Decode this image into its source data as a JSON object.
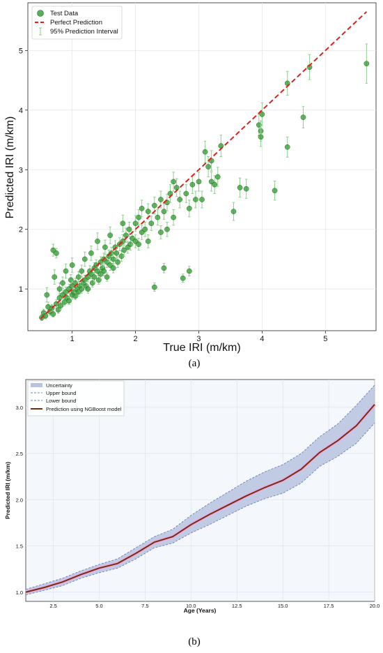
{
  "figure": {
    "caption_a": "(a)",
    "caption_b": "(b)"
  },
  "chart_data": [
    {
      "type": "scatter",
      "panel": "a",
      "xlabel": "True IRI (m/km)",
      "ylabel": "Predicted IRI (m/km)",
      "xlim": [
        0.3,
        5.8
      ],
      "ylim": [
        0.3,
        5.8
      ],
      "xticks": [
        1,
        2,
        3,
        4,
        5
      ],
      "yticks": [
        1,
        2,
        3,
        4,
        5
      ],
      "grid": true,
      "legend_position": "top-left",
      "legend": [
        "Test Data",
        "Perfect Prediction",
        "95% Prediction Interval"
      ],
      "colors": {
        "points": "#2e9b2e",
        "points_edge": "#1f6e1f",
        "interval": "#8fcf8f",
        "perfect_line": "#e0201b"
      },
      "perfect_prediction": {
        "x": [
          0.5,
          5.65
        ],
        "y": [
          0.5,
          5.65
        ]
      },
      "points": [
        {
          "x": 0.52,
          "y": 0.52,
          "e": 0.05
        },
        {
          "x": 0.55,
          "y": 0.6,
          "e": 0.06
        },
        {
          "x": 0.58,
          "y": 0.55,
          "e": 0.05
        },
        {
          "x": 0.6,
          "y": 0.9,
          "e": 0.12
        },
        {
          "x": 0.62,
          "y": 0.7,
          "e": 0.08
        },
        {
          "x": 0.65,
          "y": 0.62,
          "e": 0.06
        },
        {
          "x": 0.68,
          "y": 0.68,
          "e": 0.06
        },
        {
          "x": 0.7,
          "y": 1.65,
          "e": 0.1
        },
        {
          "x": 0.7,
          "y": 0.58,
          "e": 0.05
        },
        {
          "x": 0.72,
          "y": 1.2,
          "e": 0.12
        },
        {
          "x": 0.75,
          "y": 0.75,
          "e": 0.07
        },
        {
          "x": 0.75,
          "y": 1.6,
          "e": 0.08
        },
        {
          "x": 0.78,
          "y": 0.65,
          "e": 0.06
        },
        {
          "x": 0.8,
          "y": 0.85,
          "e": 0.08
        },
        {
          "x": 0.8,
          "y": 1.0,
          "e": 0.1
        },
        {
          "x": 0.82,
          "y": 0.72,
          "e": 0.06
        },
        {
          "x": 0.85,
          "y": 0.9,
          "e": 0.07
        },
        {
          "x": 0.85,
          "y": 1.1,
          "e": 0.1
        },
        {
          "x": 0.88,
          "y": 0.78,
          "e": 0.06
        },
        {
          "x": 0.9,
          "y": 0.95,
          "e": 0.08
        },
        {
          "x": 0.9,
          "y": 1.3,
          "e": 0.12
        },
        {
          "x": 0.92,
          "y": 0.85,
          "e": 0.07
        },
        {
          "x": 0.95,
          "y": 1.0,
          "e": 0.08
        },
        {
          "x": 0.95,
          "y": 0.8,
          "e": 0.06
        },
        {
          "x": 0.98,
          "y": 1.15,
          "e": 0.09
        },
        {
          "x": 1.0,
          "y": 0.9,
          "e": 0.07
        },
        {
          "x": 1.0,
          "y": 1.05,
          "e": 0.08
        },
        {
          "x": 1.0,
          "y": 1.4,
          "e": 0.12
        },
        {
          "x": 1.02,
          "y": 0.95,
          "e": 0.07
        },
        {
          "x": 1.05,
          "y": 1.1,
          "e": 0.08
        },
        {
          "x": 1.05,
          "y": 0.88,
          "e": 0.06
        },
        {
          "x": 1.08,
          "y": 1.0,
          "e": 0.07
        },
        {
          "x": 1.1,
          "y": 1.2,
          "e": 0.09
        },
        {
          "x": 1.1,
          "y": 0.95,
          "e": 0.07
        },
        {
          "x": 1.12,
          "y": 1.05,
          "e": 0.08
        },
        {
          "x": 1.15,
          "y": 1.3,
          "e": 0.1
        },
        {
          "x": 1.15,
          "y": 1.0,
          "e": 0.07
        },
        {
          "x": 1.18,
          "y": 1.1,
          "e": 0.08
        },
        {
          "x": 1.2,
          "y": 1.15,
          "e": 0.08
        },
        {
          "x": 1.2,
          "y": 1.5,
          "e": 0.12
        },
        {
          "x": 1.22,
          "y": 1.05,
          "e": 0.07
        },
        {
          "x": 1.25,
          "y": 1.2,
          "e": 0.08
        },
        {
          "x": 1.25,
          "y": 1.0,
          "e": 0.07
        },
        {
          "x": 1.28,
          "y": 1.3,
          "e": 0.09
        },
        {
          "x": 1.3,
          "y": 1.25,
          "e": 0.08
        },
        {
          "x": 1.3,
          "y": 1.6,
          "e": 0.12
        },
        {
          "x": 1.32,
          "y": 1.1,
          "e": 0.07
        },
        {
          "x": 1.35,
          "y": 1.35,
          "e": 0.09
        },
        {
          "x": 1.35,
          "y": 1.2,
          "e": 0.08
        },
        {
          "x": 1.38,
          "y": 1.4,
          "e": 0.09
        },
        {
          "x": 1.4,
          "y": 1.3,
          "e": 0.08
        },
        {
          "x": 1.4,
          "y": 1.8,
          "e": 0.14
        },
        {
          "x": 1.42,
          "y": 1.15,
          "e": 0.07
        },
        {
          "x": 1.45,
          "y": 1.45,
          "e": 0.09
        },
        {
          "x": 1.45,
          "y": 1.25,
          "e": 0.08
        },
        {
          "x": 1.48,
          "y": 1.35,
          "e": 0.08
        },
        {
          "x": 1.5,
          "y": 1.5,
          "e": 0.1
        },
        {
          "x": 1.5,
          "y": 1.3,
          "e": 0.08
        },
        {
          "x": 1.52,
          "y": 1.7,
          "e": 0.12
        },
        {
          "x": 1.55,
          "y": 1.45,
          "e": 0.09
        },
        {
          "x": 1.55,
          "y": 1.2,
          "e": 0.07
        },
        {
          "x": 1.58,
          "y": 1.55,
          "e": 0.1
        },
        {
          "x": 1.6,
          "y": 1.4,
          "e": 0.09
        },
        {
          "x": 1.6,
          "y": 1.9,
          "e": 0.14
        },
        {
          "x": 1.62,
          "y": 1.6,
          "e": 0.1
        },
        {
          "x": 1.65,
          "y": 1.5,
          "e": 0.09
        },
        {
          "x": 1.65,
          "y": 1.35,
          "e": 0.08
        },
        {
          "x": 1.68,
          "y": 1.7,
          "e": 0.11
        },
        {
          "x": 1.7,
          "y": 1.6,
          "e": 0.1
        },
        {
          "x": 1.72,
          "y": 1.45,
          "e": 0.09
        },
        {
          "x": 1.75,
          "y": 1.75,
          "e": 0.11
        },
        {
          "x": 1.78,
          "y": 1.55,
          "e": 0.09
        },
        {
          "x": 1.8,
          "y": 1.8,
          "e": 0.11
        },
        {
          "x": 1.8,
          "y": 2.1,
          "e": 0.14
        },
        {
          "x": 1.82,
          "y": 1.65,
          "e": 0.1
        },
        {
          "x": 1.85,
          "y": 1.9,
          "e": 0.12
        },
        {
          "x": 1.88,
          "y": 1.7,
          "e": 0.1
        },
        {
          "x": 1.9,
          "y": 2.0,
          "e": 0.12
        },
        {
          "x": 1.92,
          "y": 1.75,
          "e": 0.1
        },
        {
          "x": 1.95,
          "y": 1.85,
          "e": 0.11
        },
        {
          "x": 2.0,
          "y": 2.1,
          "e": 0.13
        },
        {
          "x": 2.0,
          "y": 1.8,
          "e": 0.11
        },
        {
          "x": 2.05,
          "y": 2.2,
          "e": 0.13
        },
        {
          "x": 2.05,
          "y": 1.75,
          "e": 0.1
        },
        {
          "x": 2.1,
          "y": 1.95,
          "e": 0.12
        },
        {
          "x": 2.1,
          "y": 2.35,
          "e": 0.14
        },
        {
          "x": 2.15,
          "y": 2.0,
          "e": 0.12
        },
        {
          "x": 2.2,
          "y": 2.3,
          "e": 0.13
        },
        {
          "x": 2.2,
          "y": 1.8,
          "e": 0.11
        },
        {
          "x": 2.25,
          "y": 2.1,
          "e": 0.12
        },
        {
          "x": 2.3,
          "y": 2.4,
          "e": 0.14
        },
        {
          "x": 2.3,
          "y": 1.03,
          "e": 0.07
        },
        {
          "x": 2.35,
          "y": 2.2,
          "e": 0.13
        },
        {
          "x": 2.4,
          "y": 2.5,
          "e": 0.14
        },
        {
          "x": 2.4,
          "y": 1.95,
          "e": 0.11
        },
        {
          "x": 2.45,
          "y": 2.3,
          "e": 0.13
        },
        {
          "x": 2.45,
          "y": 1.35,
          "e": 0.08
        },
        {
          "x": 2.5,
          "y": 2.45,
          "e": 0.14
        },
        {
          "x": 2.5,
          "y": 2.0,
          "e": 0.12
        },
        {
          "x": 2.55,
          "y": 2.6,
          "e": 0.15
        },
        {
          "x": 2.6,
          "y": 2.8,
          "e": 0.16
        },
        {
          "x": 2.6,
          "y": 2.2,
          "e": 0.13
        },
        {
          "x": 2.65,
          "y": 2.7,
          "e": 0.15
        },
        {
          "x": 2.7,
          "y": 2.5,
          "e": 0.14
        },
        {
          "x": 2.75,
          "y": 1.18,
          "e": 0.07
        },
        {
          "x": 2.8,
          "y": 2.6,
          "e": 0.15
        },
        {
          "x": 2.85,
          "y": 1.3,
          "e": 0.08
        },
        {
          "x": 2.85,
          "y": 2.35,
          "e": 0.14
        },
        {
          "x": 2.9,
          "y": 2.75,
          "e": 0.15
        },
        {
          "x": 2.95,
          "y": 2.5,
          "e": 0.14
        },
        {
          "x": 3.0,
          "y": 2.8,
          "e": 0.16
        },
        {
          "x": 3.05,
          "y": 2.5,
          "e": 0.14
        },
        {
          "x": 3.1,
          "y": 3.3,
          "e": 0.18
        },
        {
          "x": 3.15,
          "y": 3.05,
          "e": 0.17
        },
        {
          "x": 3.2,
          "y": 3.15,
          "e": 0.17
        },
        {
          "x": 3.2,
          "y": 2.8,
          "e": 0.16
        },
        {
          "x": 3.25,
          "y": 2.75,
          "e": 0.15
        },
        {
          "x": 3.3,
          "y": 2.88,
          "e": 0.16
        },
        {
          "x": 3.35,
          "y": 3.4,
          "e": 0.18
        },
        {
          "x": 3.55,
          "y": 2.3,
          "e": 0.15
        },
        {
          "x": 3.65,
          "y": 2.7,
          "e": 0.16
        },
        {
          "x": 3.75,
          "y": 2.68,
          "e": 0.16
        },
        {
          "x": 3.95,
          "y": 3.75,
          "e": 0.18
        },
        {
          "x": 3.98,
          "y": 3.65,
          "e": 0.17
        },
        {
          "x": 3.98,
          "y": 3.55,
          "e": 0.16
        },
        {
          "x": 4.0,
          "y": 3.93,
          "e": 0.19
        },
        {
          "x": 4.2,
          "y": 2.65,
          "e": 0.16
        },
        {
          "x": 4.4,
          "y": 3.38,
          "e": 0.17
        },
        {
          "x": 4.4,
          "y": 4.45,
          "e": 0.2
        },
        {
          "x": 4.65,
          "y": 3.88,
          "e": 0.18
        },
        {
          "x": 4.75,
          "y": 4.72,
          "e": 0.21
        },
        {
          "x": 5.65,
          "y": 4.78,
          "e": 0.33
        }
      ]
    },
    {
      "type": "line",
      "panel": "b",
      "xlabel": "Age (Years)",
      "ylabel": "Predicted IRI (m/km)",
      "xlim": [
        1,
        20
      ],
      "ylim": [
        0.9,
        3.3
      ],
      "xticks": [
        "2.5",
        "5.0",
        "7.5",
        "10.0",
        "12.5",
        "15.0",
        "17.5",
        "20.0"
      ],
      "yticks": [
        "1.0",
        "1.5",
        "2.0",
        "2.5",
        "3.0"
      ],
      "grid": true,
      "legend_position": "top-left",
      "legend": [
        "Uncertainty",
        "Upper bound",
        "Lower bound",
        "Prediction using NGBoost model"
      ],
      "colors": {
        "band": "#b8c3df",
        "bounds": "#6a7fb5",
        "prediction": "#7b2a0e",
        "halo": "#e7a9e4",
        "background": "#f4f7fb"
      },
      "x": [
        1,
        2,
        3,
        4,
        5,
        6,
        7,
        8,
        9,
        10,
        11,
        12,
        13,
        14,
        15,
        16,
        17,
        18,
        19,
        20
      ],
      "series": [
        {
          "name": "Upper bound",
          "values": [
            1.03,
            1.09,
            1.15,
            1.23,
            1.3,
            1.36,
            1.48,
            1.6,
            1.68,
            1.83,
            1.96,
            2.08,
            2.2,
            2.3,
            2.38,
            2.5,
            2.68,
            2.82,
            3.02,
            3.24
          ]
        },
        {
          "name": "Prediction using NGBoost model",
          "values": [
            1.0,
            1.05,
            1.11,
            1.19,
            1.26,
            1.31,
            1.42,
            1.54,
            1.6,
            1.73,
            1.84,
            1.94,
            2.04,
            2.13,
            2.21,
            2.33,
            2.51,
            2.64,
            2.8,
            3.03
          ]
        },
        {
          "name": "Lower bound",
          "values": [
            0.97,
            1.02,
            1.07,
            1.15,
            1.21,
            1.26,
            1.36,
            1.48,
            1.53,
            1.64,
            1.73,
            1.83,
            1.93,
            2.01,
            2.07,
            2.18,
            2.36,
            2.47,
            2.61,
            2.83
          ]
        }
      ]
    }
  ]
}
